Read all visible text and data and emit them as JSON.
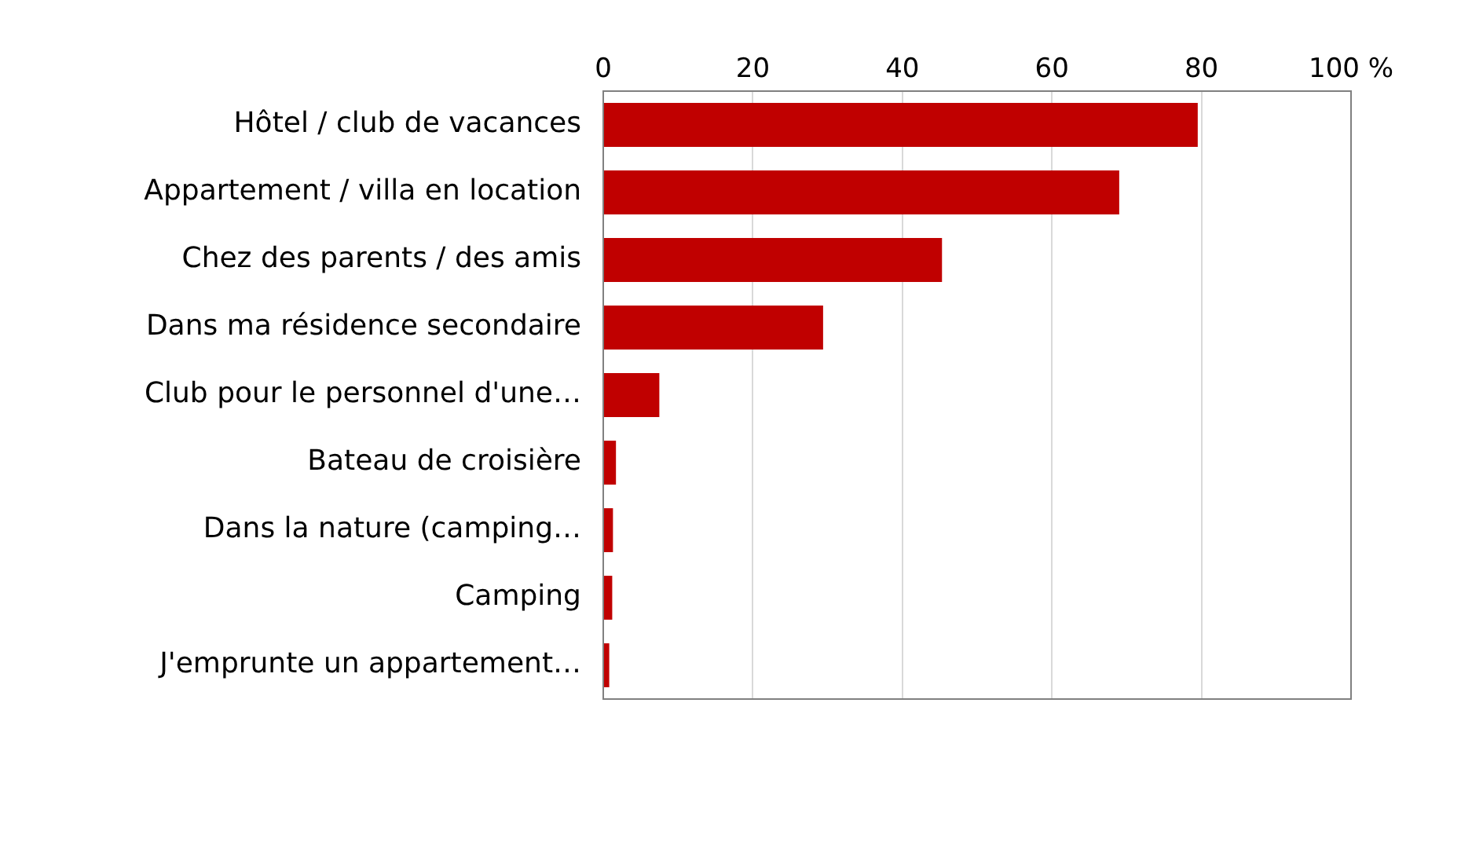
{
  "chart_data": {
    "type": "bar",
    "orientation": "horizontal",
    "categories": [
      "Hôtel / club de vacances",
      "Appartement / villa en location",
      "Chez des parents / des amis",
      "Dans ma résidence secondaire",
      "Club pour le personnel d'une…",
      "Bateau de croisière",
      "Dans la nature (camping…",
      "Camping",
      "J'emprunte un appartement…"
    ],
    "values": [
      79.5,
      69,
      45.3,
      29.4,
      7.5,
      1.7,
      1.3,
      1.2,
      0.8
    ],
    "color": "#c00000",
    "xlim": [
      0,
      100
    ],
    "xticks": [
      0,
      20,
      40,
      60,
      80,
      {
        "value": 100,
        "label": "100 %"
      }
    ],
    "grid": "x",
    "legend": false
  }
}
